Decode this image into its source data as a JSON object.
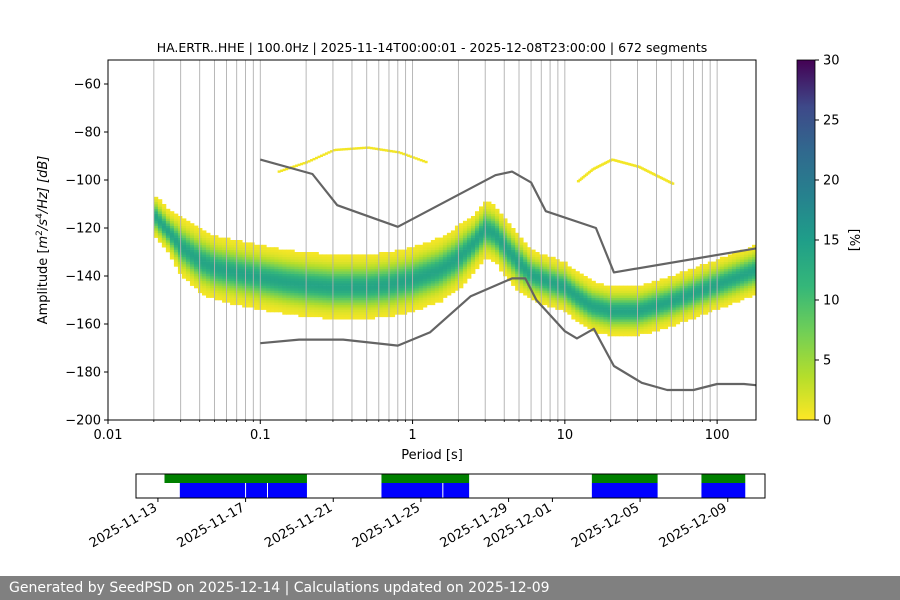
{
  "chart_data": [
    {
      "type": "heatmap",
      "title": "HA.ERTR..HHE | 100.0Hz | 2025-11-14T00:00:01 - 2025-12-08T23:00:00 | 672 segments",
      "xlabel": "Period [s]",
      "ylabel": "Amplitude [$m^2/s^4/Hz$] [dB]",
      "ylabel_parts": {
        "pre": "Amplitude [",
        "m": "m",
        "exp2": "2",
        "mid": "/",
        "s": "s",
        "exp4": "4",
        "post": "/Hz] [dB]"
      },
      "x_scale": "log",
      "xlim": [
        0.01,
        180
      ],
      "ylim": [
        -200,
        -50
      ],
      "x_ticks": [
        0.01,
        0.1,
        1,
        10,
        100
      ],
      "x_tick_labels": [
        "0.01",
        "0.1",
        "1",
        "10",
        "100"
      ],
      "y_ticks": [
        -200,
        -180,
        -160,
        -140,
        -120,
        -100,
        -80,
        -60
      ],
      "y_tick_labels": [
        "−200",
        "−180",
        "−160",
        "−140",
        "−120",
        "−100",
        "−80",
        "−60"
      ],
      "grid": "x (log major and minor)",
      "colormap": "viridis_r",
      "colorbar": {
        "label": "[%]",
        "range": [
          0,
          30
        ],
        "ticks": [
          0,
          5,
          10,
          15,
          20,
          25,
          30
        ],
        "tick_labels": [
          "0",
          "5",
          "10",
          "15",
          "20",
          "25",
          "30"
        ]
      },
      "mode_curve": {
        "period": [
          0.02,
          0.025,
          0.03,
          0.04,
          0.05,
          0.07,
          0.1,
          0.15,
          0.2,
          0.3,
          0.5,
          0.7,
          1,
          1.5,
          2,
          2.5,
          3,
          3.5,
          4,
          5,
          6,
          8,
          10,
          12,
          15,
          20,
          30,
          50,
          100,
          180
        ],
        "amplitude": [
          -115,
          -122,
          -128,
          -134,
          -137,
          -139,
          -141,
          -143,
          -144,
          -145,
          -145,
          -144,
          -142,
          -138,
          -133,
          -127,
          -121,
          -123,
          -128,
          -135,
          -140,
          -143,
          -145,
          -149,
          -153,
          -155,
          -155,
          -151,
          -144,
          -138
        ]
      },
      "distribution_spread_db": [
        6,
        6,
        8,
        9,
        9,
        9,
        9,
        9,
        9,
        9,
        9,
        9,
        9,
        9,
        9,
        8,
        8,
        8,
        8,
        8,
        7,
        7,
        7,
        7,
        7,
        7,
        7,
        7,
        7,
        7
      ],
      "sparse_upper_arcs": [
        {
          "period": [
            0.13,
            0.2,
            0.3,
            0.5,
            0.8,
            1.2
          ],
          "amplitude": [
            -96,
            -92,
            -87,
            -86,
            -88,
            -92
          ]
        },
        {
          "period": [
            12,
            15,
            20,
            30,
            50
          ],
          "amplitude": [
            -100,
            -95,
            -91,
            -94,
            -101
          ]
        }
      ],
      "series": [
        {
          "period": [
            0.1,
            0.22,
            0.32,
            0.8,
            3.5,
            4.5,
            6,
            7.5,
            16,
            21,
            180
          ],
          "amplitude": [
            -91.5,
            -97.5,
            -110.5,
            -119.5,
            -98,
            -96.5,
            -101,
            -113,
            -120,
            -138.5,
            -128.5
          ]
        },
        {
          "period": [
            0.1,
            0.18,
            0.35,
            0.8,
            1.3,
            2.4,
            4.5,
            5.5,
            6.5,
            10,
            12,
            15.5,
            21,
            32,
            47,
            70,
            100,
            150,
            180
          ],
          "amplitude": [
            -168,
            -166.5,
            -166.5,
            -169,
            -163.5,
            -148.5,
            -141,
            -141,
            -150,
            -163,
            -166,
            -162,
            -177.5,
            -184.5,
            -187.5,
            -187.5,
            -185,
            -185,
            -185.5
          ]
        }
      ]
    },
    {
      "type": "timeline",
      "x_tick_labels": [
        "2025-11-13",
        "2025-11-17",
        "2025-11-21",
        "2025-11-25",
        "2025-11-29",
        "2025-12-01",
        "2025-12-05",
        "2025-12-09"
      ],
      "x_ticks": [
        "2025-11-13",
        "2025-11-17",
        "2025-11-21",
        "2025-11-25",
        "2025-11-29",
        "2025-12-01",
        "2025-12-05",
        "2025-12-09"
      ],
      "xlim": [
        "2025-11-12",
        "2025-12-10.7"
      ],
      "colors": {
        "available": "#008000",
        "used": "#0000ff"
      },
      "available_periods": [
        {
          "start": "2025-11-13.3",
          "end": "2025-11-19.8"
        },
        {
          "start": "2025-11-23.2",
          "end": "2025-11-27.2"
        },
        {
          "start": "2025-12-02.8",
          "end": "2025-12-05.8"
        },
        {
          "start": "2025-12-07.8",
          "end": "2025-12-09.8"
        }
      ],
      "used_periods": [
        {
          "start": "2025-11-14.0",
          "end": "2025-11-19.8"
        },
        {
          "start": "2025-11-23.2",
          "end": "2025-11-27.2"
        },
        {
          "start": "2025-12-02.8",
          "end": "2025-12-05.8"
        },
        {
          "start": "2025-12-07.8",
          "end": "2025-12-09.8"
        }
      ],
      "gaps": [
        "2025-11-17.0",
        "2025-11-18.0",
        "2025-11-26.0"
      ]
    }
  ],
  "footer": {
    "text": "Generated by SeedPSD on 2025-12-14 | Calculations updated on 2025-12-09"
  }
}
